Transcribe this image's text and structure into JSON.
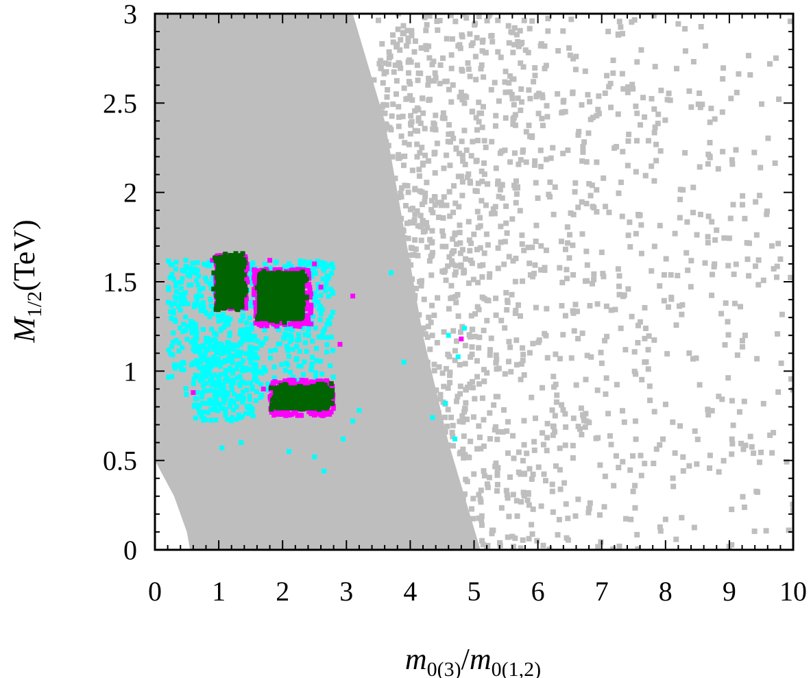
{
  "chart_data": {
    "type": "scatter",
    "title": "",
    "xlabel": {
      "var": "m",
      "sub1": "0(3)",
      "slash": "/",
      "var2": "m",
      "sub2": "0(1,2)"
    },
    "ylabel": {
      "var": "M",
      "sub": "1/2",
      "unit": "(TeV)"
    },
    "xlim": [
      0,
      10
    ],
    "ylim": [
      0,
      3
    ],
    "x_ticks": [
      "0",
      "1",
      "2",
      "3",
      "4",
      "5",
      "6",
      "7",
      "8",
      "9",
      "10"
    ],
    "y_ticks": [
      "0",
      "0.5",
      "1",
      "1.5",
      "2",
      "2.5",
      "3"
    ],
    "grid": false,
    "legend": "none",
    "series": [
      {
        "color": "#bebebe",
        "description_region": "dense fill for x in [0, ~3.5] across full y range with left edge boundary; sparse points out to x = 10",
        "dense_boundary": [
          [
            0,
            0.5
          ],
          [
            0.3,
            0.3
          ],
          [
            0.5,
            0.1
          ],
          [
            0.55,
            0
          ],
          [
            5.1,
            0
          ],
          [
            4.6,
            0.6
          ],
          [
            4.2,
            1.2
          ],
          [
            3.9,
            1.8
          ],
          [
            3.6,
            2.4
          ],
          [
            3.1,
            3.0
          ],
          [
            0,
            3.0
          ]
        ],
        "sparse_density": [
          [
            3.5,
            0.9
          ],
          [
            4.5,
            0.6
          ],
          [
            5.5,
            0.4
          ],
          [
            6.5,
            0.25
          ],
          [
            7.5,
            0.17
          ],
          [
            8.5,
            0.12
          ],
          [
            9.5,
            0.1
          ],
          [
            10,
            0.08
          ]
        ]
      },
      {
        "color": "#00ffff",
        "clusters": [
          {
            "x": [
              0.2,
              2.8
            ],
            "y": [
              0.8,
              1.62
            ]
          },
          {
            "x": [
              0.6,
              1.6
            ],
            "y": [
              0.72,
              1.2
            ]
          }
        ],
        "outliers": [
          [
            1.05,
            0.57
          ],
          [
            1.35,
            0.6
          ],
          [
            2.1,
            0.55
          ],
          [
            2.5,
            0.52
          ],
          [
            2.65,
            0.44
          ],
          [
            3.2,
            0.78
          ],
          [
            3.7,
            1.55
          ],
          [
            3.9,
            1.05
          ],
          [
            4.35,
            0.74
          ],
          [
            4.55,
            0.82
          ],
          [
            4.7,
            0.62
          ],
          [
            4.85,
            1.24
          ],
          [
            4.6,
            1.2
          ],
          [
            4.75,
            1.08
          ],
          [
            3.1,
            0.72
          ],
          [
            2.95,
            0.62
          ]
        ]
      },
      {
        "color": "#ff00ff",
        "clusters": [
          {
            "x": [
              0.95,
              1.45
            ],
            "y": [
              1.35,
              1.65
            ]
          },
          {
            "x": [
              1.55,
              2.45
            ],
            "y": [
              1.25,
              1.57
            ]
          },
          {
            "x": [
              1.8,
              2.8
            ],
            "y": [
              0.75,
              0.95
            ]
          }
        ],
        "outliers": [
          [
            0.6,
            0.88
          ],
          [
            1.7,
            0.9
          ],
          [
            2.9,
            1.15
          ],
          [
            3.1,
            1.42
          ],
          [
            2.6,
            1.47
          ],
          [
            4.8,
            1.18
          ],
          [
            0.9,
            1.62
          ],
          [
            1.8,
            1.62
          ],
          [
            2.5,
            1.6
          ]
        ]
      },
      {
        "color": "#006400",
        "rects": [
          {
            "x": [
              0.95,
              1.4
            ],
            "y": [
              1.35,
              1.65
            ]
          },
          {
            "x": [
              1.6,
              2.35
            ],
            "y": [
              1.28,
              1.56
            ]
          },
          {
            "x": [
              1.85,
              2.75
            ],
            "y": [
              0.78,
              0.92
            ]
          }
        ]
      }
    ]
  }
}
